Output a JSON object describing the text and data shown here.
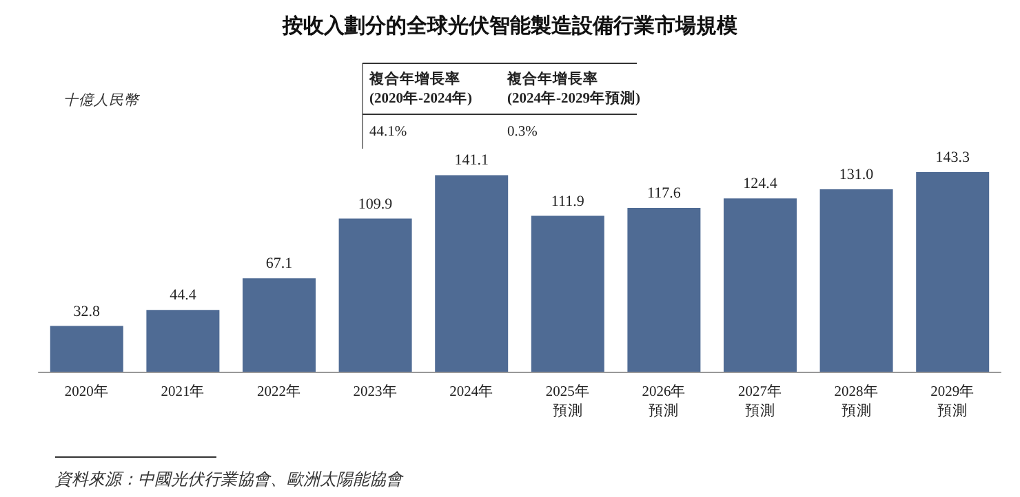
{
  "chart_data": {
    "type": "bar",
    "title": "按收入劃分的全球光伏智能製造設備行業市場規模",
    "ylabel": "十億人民幣",
    "categories": [
      "2020年",
      "2021年",
      "2022年",
      "2023年",
      "2024年",
      "2025年預測",
      "2026年預測",
      "2027年預測",
      "2028年預測",
      "2029年預測"
    ],
    "values": [
      32.8,
      44.4,
      67.1,
      109.9,
      141.1,
      111.9,
      117.6,
      124.4,
      131.0,
      143.3
    ],
    "value_labels": [
      "32.8",
      "44.4",
      "67.1",
      "109.9",
      "141.1",
      "111.9",
      "117.6",
      "124.4",
      "131.0",
      "143.3"
    ],
    "color": "#4f6b94",
    "annotations": [
      "複合年增長率\n(2020年-2024年)",
      "複合年增長率\n(2024年-2029年預測)",
      "44.1%",
      "0.3%",
      "資料來源：中國光伏行業協會、歐洲太陽能協會"
    ]
  }
}
